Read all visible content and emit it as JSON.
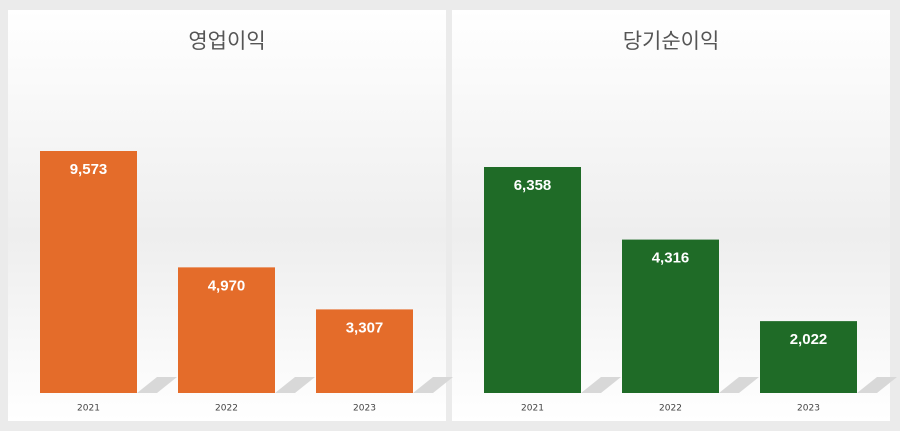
{
  "chart_data": [
    {
      "type": "bar",
      "title": "영업이익",
      "categories": [
        "2021",
        "2022",
        "2023"
      ],
      "values": [
        9573,
        4970,
        3307
      ],
      "value_labels": [
        "9,573",
        "4,970",
        "3,307"
      ],
      "color": "#e46c2a"
    },
    {
      "type": "bar",
      "title": "당기순이익",
      "categories": [
        "2021",
        "2022",
        "2023"
      ],
      "values": [
        6358,
        4316,
        2022
      ],
      "value_labels": [
        "6,358",
        "4,316",
        "2,022"
      ],
      "color": "#1f6b27"
    }
  ]
}
